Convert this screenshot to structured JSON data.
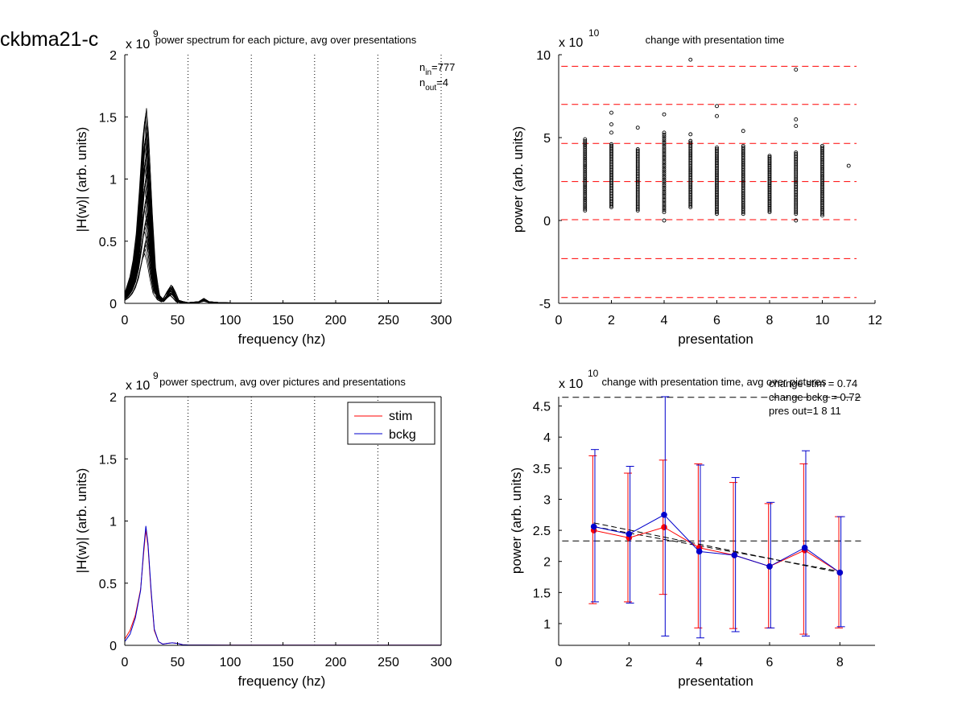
{
  "figure_label": "ckbma21-c",
  "chart_data": [
    {
      "id": "p1",
      "type": "line",
      "title": "power spectrum for each picture, avg over presentations",
      "xlabel": "frequency (hz)",
      "ylabel": "|H(w)| (arb. units)",
      "exponent_base": "x 10",
      "exponent": "9",
      "xlim": [
        0,
        300
      ],
      "ylim": [
        0,
        2
      ],
      "xticks": [
        0,
        50,
        100,
        150,
        200,
        250,
        300
      ],
      "yticks": [
        0,
        0.5,
        1,
        1.5,
        2
      ],
      "ytick_labels": [
        "0",
        "0.5",
        "1",
        "1.5",
        "2"
      ],
      "vlines": [
        60,
        120,
        180,
        240,
        300
      ],
      "ann_in_base": "n",
      "ann_in_sub": "in",
      "ann_in_val": "=777",
      "ann_out_base": "n",
      "ann_out_sub": "out",
      "ann_out_val": "=4",
      "curve_x": [
        0,
        3,
        6,
        9,
        12,
        15,
        18,
        20,
        22,
        25,
        28,
        32,
        36,
        40,
        44,
        47,
        50,
        55,
        60,
        70,
        75,
        80,
        90,
        100,
        150,
        200,
        250,
        300
      ],
      "curve_y": [
        0.06,
        0.1,
        0.16,
        0.26,
        0.42,
        0.68,
        0.98,
        1.1,
        0.95,
        0.55,
        0.22,
        0.05,
        0.02,
        0.07,
        0.11,
        0.07,
        0.02,
        0.01,
        0.005,
        0.01,
        0.03,
        0.01,
        0.005,
        0.003,
        0.002,
        0.002,
        0.002,
        0.002
      ],
      "curve_count": 34,
      "curve_peak_range": [
        0.4,
        1.57
      ]
    },
    {
      "id": "p2",
      "type": "scatter",
      "title": "change with presentation time",
      "xlabel": "presentation",
      "ylabel": "power (arb. units)",
      "exponent_base": "x 10",
      "exponent": "10",
      "xlim": [
        0,
        12
      ],
      "ylim": [
        -5,
        10
      ],
      "xticks": [
        0,
        2,
        4,
        6,
        8,
        10,
        12
      ],
      "yticks": [
        -5,
        0,
        5,
        10
      ],
      "hlines": [
        -4.65,
        -2.3,
        0.05,
        2.35,
        4.65,
        7.0,
        9.3
      ],
      "clusters": [
        {
          "x": 1,
          "min": 0.6,
          "max": 4.9,
          "extra": []
        },
        {
          "x": 2,
          "min": 0.8,
          "max": 4.6,
          "extra": [
            5.3,
            5.8,
            6.5
          ]
        },
        {
          "x": 3,
          "min": 0.6,
          "max": 4.3,
          "extra": [
            5.6
          ]
        },
        {
          "x": 4,
          "min": 0.5,
          "max": 5.3,
          "extra": [
            0.0,
            6.4
          ]
        },
        {
          "x": 5,
          "min": 0.8,
          "max": 4.8,
          "extra": [
            5.2,
            9.7
          ]
        },
        {
          "x": 6,
          "min": 0.4,
          "max": 4.4,
          "extra": [
            6.3,
            6.9
          ]
        },
        {
          "x": 7,
          "min": 0.4,
          "max": 4.5,
          "extra": [
            5.4
          ]
        },
        {
          "x": 8,
          "min": 0.5,
          "max": 3.9,
          "extra": []
        },
        {
          "x": 9,
          "min": 0.4,
          "max": 4.1,
          "extra": [
            0.0,
            5.7,
            6.1,
            9.1
          ]
        },
        {
          "x": 10,
          "min": 0.3,
          "max": 4.5,
          "extra": []
        },
        {
          "x": 11,
          "min": 3.3,
          "max": 3.3,
          "extra": []
        }
      ]
    },
    {
      "id": "p3",
      "type": "line",
      "title": "power spectrum, avg over pictures and presentations",
      "xlabel": "frequency (hz)",
      "ylabel": "|H(w)| (arb. units)",
      "exponent_base": "x 10",
      "exponent": "9",
      "xlim": [
        0,
        300
      ],
      "ylim": [
        0,
        2
      ],
      "xticks": [
        0,
        50,
        100,
        150,
        200,
        250,
        300
      ],
      "yticks": [
        0,
        0.5,
        1,
        1.5,
        2
      ],
      "ytick_labels": [
        "0",
        "0.5",
        "1",
        "1.5",
        "2"
      ],
      "vlines": [
        60,
        120,
        180,
        240,
        300
      ],
      "legend_position": "top-right",
      "series": [
        {
          "name": "stim",
          "color": "#ff0000",
          "x": [
            0,
            5,
            10,
            15,
            18,
            20,
            22,
            25,
            28,
            32,
            36,
            40,
            45,
            50,
            55,
            60,
            100,
            150,
            200,
            250,
            300
          ],
          "y": [
            0.05,
            0.12,
            0.24,
            0.45,
            0.75,
            0.93,
            0.8,
            0.42,
            0.12,
            0.03,
            0.01,
            0.015,
            0.02,
            0.015,
            0.005,
            0.003,
            0.002,
            0.002,
            0.002,
            0.002,
            0.002
          ]
        },
        {
          "name": "bckg",
          "color": "#0000cc",
          "x": [
            0,
            5,
            10,
            15,
            18,
            20,
            22,
            25,
            28,
            32,
            36,
            40,
            45,
            50,
            55,
            60,
            100,
            150,
            200,
            250,
            300
          ],
          "y": [
            0.03,
            0.09,
            0.22,
            0.44,
            0.78,
            0.96,
            0.82,
            0.44,
            0.13,
            0.03,
            0.01,
            0.015,
            0.02,
            0.015,
            0.005,
            0.003,
            0.002,
            0.002,
            0.002,
            0.002,
            0.002
          ]
        }
      ]
    },
    {
      "id": "p4",
      "type": "line",
      "title": "change with presentation time, avg over pictures",
      "xlabel": "presentation",
      "ylabel": "power (arb. units)",
      "exponent_base": "x 10",
      "exponent": "10",
      "xlim": [
        0,
        9
      ],
      "ylim": [
        0.65,
        4.65
      ],
      "xticks": [
        0,
        2,
        4,
        6,
        8
      ],
      "yticks": [
        1,
        1.5,
        2,
        2.5,
        3,
        3.5,
        4,
        4.5
      ],
      "ytick_labels": [
        "1",
        "1.5",
        "2",
        "2.5",
        "3",
        "3.5",
        "4",
        "4.5"
      ],
      "hlines": [
        4.64,
        2.33
      ],
      "annotations": [
        "change stim = 0.74",
        "change bckg = 0.72",
        "pres out=1 8 11"
      ],
      "x": [
        1,
        2,
        3,
        4,
        5,
        6,
        7,
        8
      ],
      "series": [
        {
          "name": "stim",
          "color": "#ff0000",
          "values": [
            2.5,
            2.38,
            2.55,
            2.22,
            2.1,
            1.92,
            2.18,
            1.82
          ],
          "err_low": [
            1.32,
            1.35,
            1.47,
            0.93,
            0.92,
            0.93,
            0.83,
            0.93
          ],
          "err_high": [
            3.7,
            3.42,
            3.63,
            3.57,
            3.27,
            2.93,
            3.57,
            2.72
          ],
          "trend": [
            2.56,
            1.84
          ]
        },
        {
          "name": "bckg",
          "color": "#0000cc",
          "values": [
            2.56,
            2.44,
            2.75,
            2.16,
            2.1,
            1.92,
            2.22,
            1.82
          ],
          "err_low": [
            1.35,
            1.33,
            0.8,
            0.77,
            0.87,
            0.93,
            0.8,
            0.95
          ],
          "err_high": [
            3.8,
            3.53,
            4.65,
            3.55,
            3.35,
            2.95,
            3.78,
            2.72
          ],
          "trend": [
            2.62,
            1.82
          ]
        }
      ]
    }
  ]
}
